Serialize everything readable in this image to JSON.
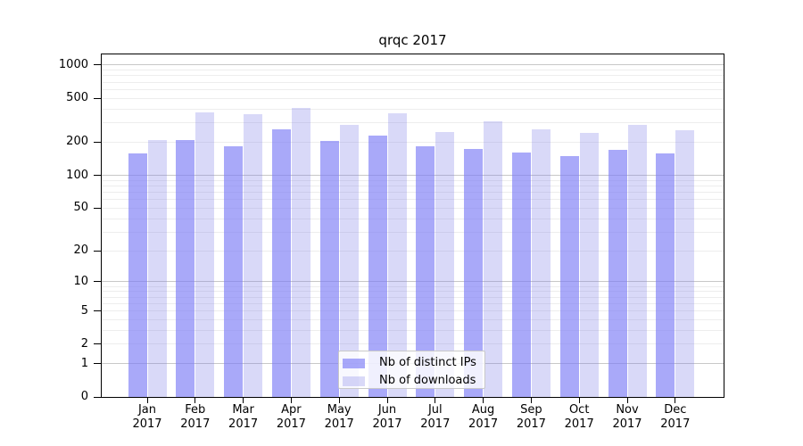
{
  "title": "qrqc 2017",
  "chart_data": {
    "type": "bar",
    "title": "qrqc 2017",
    "xlabel": "",
    "ylabel": "",
    "scale": "log1p",
    "grid": true,
    "legend_position": "lower center",
    "categories": [
      "Jan 2017",
      "Feb 2017",
      "Mar 2017",
      "Apr 2017",
      "May 2017",
      "Jun 2017",
      "Jul 2017",
      "Aug 2017",
      "Sep 2017",
      "Oct 2017",
      "Nov 2017",
      "Dec 2017"
    ],
    "series": [
      {
        "name": "Nb of distinct IPs",
        "color": "#a9a9f8",
        "fill_rgba": "rgba(123,123,246,0.65)",
        "values": [
          157,
          210,
          185,
          263,
          205,
          228,
          183,
          175,
          160,
          150,
          172,
          158
        ]
      },
      {
        "name": "Nb of downloads",
        "color": "#d9d9f8",
        "fill_rgba": "rgba(128,128,232,0.30)",
        "values": [
          209,
          370,
          360,
          406,
          287,
          364,
          248,
          307,
          260,
          243,
          289,
          259
        ]
      }
    ],
    "y_ticks": [
      0,
      1,
      2,
      5,
      10,
      20,
      50,
      100,
      200,
      500,
      1000
    ],
    "major_gridlines": [
      1,
      10,
      100,
      1000
    ],
    "ylim": [
      0,
      1250
    ]
  }
}
